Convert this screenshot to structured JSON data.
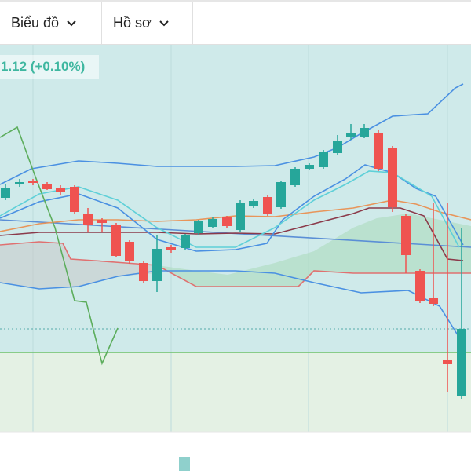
{
  "toolbar": {
    "items": [
      "Biểu đồ",
      "Hồ sơ"
    ]
  },
  "price_change": "1.12 (+0.10%)"
}
